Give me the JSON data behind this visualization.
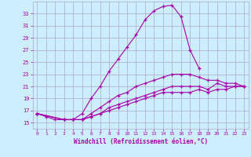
{
  "xlabel": "Windchill (Refroidissement éolien,°C)",
  "ylabel": "",
  "bg_color": "#cceeff",
  "grid_color": "#aaaacc",
  "line_color": "#aa00aa",
  "xlim": [
    -0.5,
    23.5
  ],
  "ylim": [
    14.0,
    35.0
  ],
  "xticks": [
    0,
    1,
    2,
    3,
    4,
    5,
    6,
    7,
    8,
    9,
    10,
    11,
    12,
    13,
    14,
    15,
    16,
    17,
    18,
    19,
    20,
    21,
    22,
    23
  ],
  "yticks": [
    15,
    17,
    19,
    21,
    23,
    25,
    27,
    29,
    31,
    33
  ],
  "curve1_x": [
    0,
    1,
    2,
    3,
    4,
    5,
    6,
    7,
    8,
    9,
    10,
    11,
    12,
    13,
    14,
    15,
    16,
    17,
    18
  ],
  "curve1_y": [
    16.5,
    16.0,
    15.5,
    15.5,
    15.5,
    16.5,
    19.0,
    21.0,
    23.5,
    25.5,
    27.5,
    29.5,
    32.0,
    33.5,
    34.2,
    34.4,
    32.5,
    27.0,
    24.0
  ],
  "curve2_x": [
    0,
    3,
    4,
    5,
    6,
    7,
    8,
    9,
    10,
    11,
    12,
    13,
    14,
    15,
    16,
    17,
    18,
    19,
    20,
    21,
    22,
    23
  ],
  "curve2_y": [
    16.5,
    15.5,
    15.5,
    15.5,
    16.5,
    17.5,
    18.5,
    19.5,
    20.0,
    21.0,
    21.5,
    22.0,
    22.5,
    23.0,
    23.0,
    23.0,
    22.5,
    22.0,
    22.0,
    21.5,
    21.5,
    21.0
  ],
  "curve3_x": [
    0,
    3,
    4,
    5,
    6,
    7,
    8,
    9,
    10,
    11,
    12,
    13,
    14,
    15,
    16,
    17,
    18,
    19,
    20,
    21,
    22,
    23
  ],
  "curve3_y": [
    16.5,
    15.5,
    15.5,
    15.5,
    16.0,
    16.5,
    17.5,
    18.0,
    18.5,
    19.0,
    19.5,
    20.0,
    20.5,
    21.0,
    21.0,
    21.0,
    21.0,
    20.5,
    21.5,
    21.0,
    21.0,
    21.0
  ],
  "curve4_x": [
    0,
    3,
    4,
    5,
    6,
    7,
    8,
    9,
    10,
    11,
    12,
    13,
    14,
    15,
    16,
    17,
    18,
    19,
    20,
    21,
    22,
    23
  ],
  "curve4_y": [
    16.5,
    15.5,
    15.5,
    15.5,
    16.0,
    16.5,
    17.0,
    17.5,
    18.0,
    18.5,
    19.0,
    19.5,
    20.0,
    20.0,
    20.0,
    20.0,
    20.5,
    20.0,
    20.5,
    20.5,
    21.0,
    21.0
  ]
}
